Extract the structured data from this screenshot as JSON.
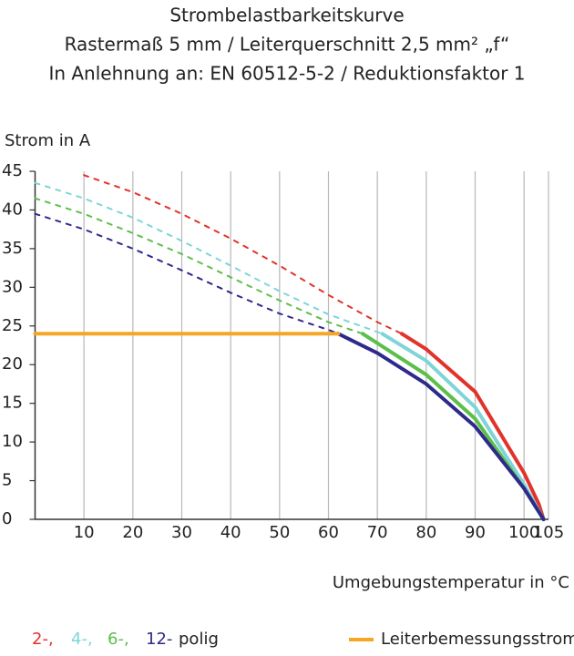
{
  "chart_data": {
    "type": "line",
    "title": "Strombelastbarkeitskurve",
    "subtitle": "Rastermaß 5 mm / Leiterquerschnitt 2,5 mm² „f“",
    "subtitle2": "In Anlehnung an: EN 60512-5-2 / Reduktionsfaktor 1",
    "y_label": "Strom in A",
    "x_label": "Umgebungstemperatur in °C",
    "legend_suffix": "polig",
    "xlim": [
      0,
      105
    ],
    "ylim": [
      0,
      45
    ],
    "xticks": [
      10,
      20,
      30,
      40,
      50,
      60,
      70,
      80,
      90,
      100,
      105
    ],
    "yticks": [
      0,
      5,
      10,
      15,
      20,
      25,
      30,
      35,
      40,
      45
    ],
    "grid": true,
    "series": [
      {
        "name": "2-,",
        "color": "#e2332b",
        "x": [
          10,
          20,
          30,
          40,
          50,
          60,
          70,
          75,
          80,
          90,
          100,
          103,
          104
        ],
        "values": [
          44.5,
          42.3,
          39.5,
          36.3,
          32.8,
          29,
          25.5,
          24,
          22,
          16.5,
          6,
          2,
          0
        ]
      },
      {
        "name": "4-,",
        "color": "#7fd4d8",
        "x": [
          0,
          10,
          20,
          30,
          40,
          50,
          60,
          71,
          80,
          90,
          100,
          104
        ],
        "values": [
          43.5,
          41.5,
          39,
          36,
          32.8,
          29.5,
          26.5,
          24,
          20.5,
          14.5,
          4.5,
          0
        ]
      },
      {
        "name": "6-,",
        "color": "#5cbf4a",
        "x": [
          0,
          10,
          20,
          30,
          40,
          50,
          60,
          67,
          80,
          90,
          100,
          104
        ],
        "values": [
          41.5,
          39.5,
          37,
          34.3,
          31.3,
          28.3,
          25.5,
          24,
          18.7,
          13,
          4,
          0
        ]
      },
      {
        "name": "12-",
        "color": "#2e2a8c",
        "x": [
          0,
          10,
          20,
          30,
          40,
          50,
          60,
          62,
          70,
          80,
          90,
          100,
          104
        ],
        "values": [
          39.5,
          37.5,
          35,
          32.2,
          29.3,
          26.6,
          24.5,
          24,
          21.5,
          17.5,
          12,
          4,
          0
        ]
      },
      {
        "name": "Leiterbemessungsstrom",
        "color": "#f5a623",
        "x": [
          0,
          62
        ],
        "values": [
          24,
          24
        ]
      }
    ]
  }
}
